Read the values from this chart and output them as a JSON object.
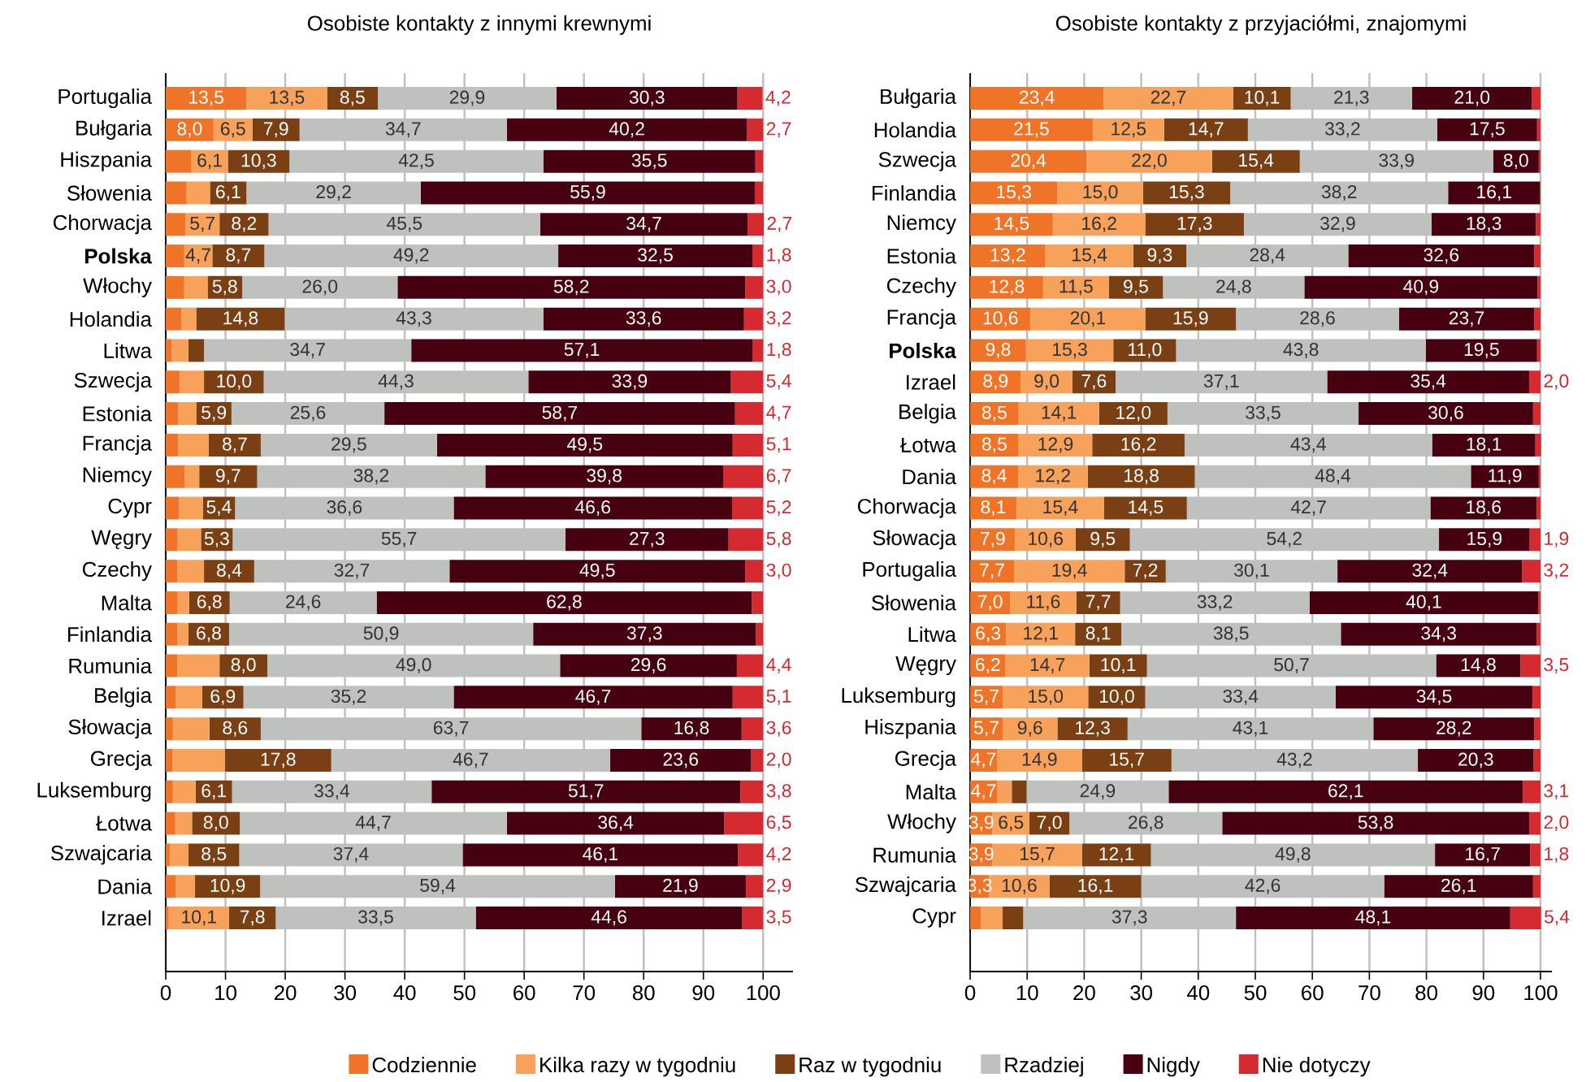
{
  "chart_data": [
    {
      "type": "bar",
      "orientation": "horizontal",
      "stacked": true,
      "title": "Osobiste kontakty z innymi krewnymi",
      "grid": "x",
      "legend": "bottom",
      "xlim": [
        0,
        105
      ],
      "xticks": [
        0,
        10,
        20,
        30,
        40,
        50,
        60,
        70,
        80,
        90,
        100
      ],
      "categories": [
        "Portugalia",
        "Bułgaria",
        "Hiszpania",
        "Słowenia",
        "Chorwacja",
        "**Polska**",
        "Włochy",
        "Holandia",
        "Litwa",
        "Szwecja",
        "Estonia",
        "Francja",
        "Niemcy",
        "Cypr",
        "Węgry",
        "Czechy",
        "Malta",
        "Finlandia",
        "Rumunia",
        "Belgia",
        "Słowacja",
        "Grecja",
        "Luksemburg",
        "Łotwa",
        "Szwajcaria",
        "Dania",
        "Izrael"
      ],
      "series": [
        {
          "name": "Codziennie",
          "color": "#f07427",
          "values": [
            13.5,
            8.0,
            4.3,
            3.5,
            3.3,
            3.1,
            3.1,
            2.6,
            1.0,
            2.3,
            2.1,
            2.1,
            3.2,
            2.2,
            2.0,
            1.9,
            2.0,
            1.9,
            1.9,
            1.7,
            1.2,
            1.1,
            1.2,
            1.6,
            0.7,
            1.7,
            0.5
          ],
          "value_labels": [
            "13,5",
            "8,0",
            null,
            null,
            null,
            null,
            null,
            null,
            null,
            null,
            null,
            null,
            null,
            null,
            null,
            null,
            null,
            null,
            null,
            null,
            null,
            null,
            null,
            null,
            null,
            null,
            null
          ]
        },
        {
          "name": "Kilka razy w tygodniu",
          "color": "#f7a15a",
          "values": [
            13.5,
            6.5,
            6.1,
            3.9,
            5.7,
            4.7,
            3.9,
            2.5,
            2.8,
            4.1,
            3.0,
            5.1,
            2.4,
            4.0,
            3.9,
            4.5,
            1.9,
            1.9,
            7.1,
            4.4,
            6.1,
            8.8,
            3.8,
            2.8,
            3.1,
            3.2,
            10.1
          ],
          "value_labels": [
            "13,5",
            "6,5",
            "6,1",
            null,
            "5,7",
            "4,7",
            null,
            null,
            null,
            null,
            null,
            null,
            null,
            null,
            null,
            null,
            null,
            null,
            null,
            null,
            null,
            null,
            null,
            null,
            null,
            null,
            "10,1"
          ]
        },
        {
          "name": "Raz w tygodniu",
          "color": "#7b3f14",
          "values": [
            8.5,
            7.9,
            10.3,
            6.1,
            8.2,
            8.7,
            5.8,
            14.8,
            2.6,
            10.0,
            5.9,
            8.7,
            9.7,
            5.4,
            5.3,
            8.4,
            6.8,
            6.8,
            8.0,
            6.9,
            8.6,
            17.8,
            6.1,
            8.0,
            8.5,
            10.9,
            7.8
          ],
          "value_labels": [
            "8,5",
            "7,9",
            "10,3",
            "6,1",
            "8,2",
            "8,7",
            "5,8",
            "14,8",
            null,
            "10,0",
            "5,9",
            "8,7",
            "9,7",
            "5,4",
            "5,3",
            "8,4",
            "6,8",
            "6,8",
            "8,0",
            "6,9",
            "8,6",
            "17,8",
            "6,1",
            "8,0",
            "8,5",
            "10,9",
            "7,8"
          ]
        },
        {
          "name": "Rzadziej",
          "color": "#bfc1bf",
          "values": [
            29.9,
            34.7,
            42.5,
            29.2,
            45.5,
            49.2,
            26.0,
            43.3,
            34.7,
            44.3,
            25.6,
            29.5,
            38.2,
            36.6,
            55.7,
            32.7,
            24.6,
            50.9,
            49.0,
            35.2,
            63.7,
            46.7,
            33.4,
            44.7,
            37.4,
            59.4,
            33.5
          ],
          "value_labels": [
            "29,9",
            "34,7",
            "42,5",
            "29,2",
            "45,5",
            "49,2",
            "26,0",
            "43,3",
            "34,7",
            "44,3",
            "25,6",
            "29,5",
            "38,2",
            "36,6",
            "55,7",
            "32,7",
            "24,6",
            "50,9",
            "49,0",
            "35,2",
            "63,7",
            "46,7",
            "33,4",
            "44,7",
            "37,4",
            "59,4",
            "33,5"
          ]
        },
        {
          "name": "Nigdy",
          "color": "#46000f",
          "values": [
            30.3,
            40.2,
            35.5,
            55.9,
            34.7,
            32.5,
            58.2,
            33.6,
            57.1,
            33.9,
            58.7,
            49.5,
            39.8,
            46.6,
            27.3,
            49.5,
            62.8,
            37.3,
            29.6,
            46.7,
            16.8,
            23.6,
            51.7,
            36.4,
            46.1,
            21.9,
            44.6
          ],
          "value_labels": [
            "30,3",
            "40,2",
            "35,5",
            "55,9",
            "34,7",
            "32,5",
            "58,2",
            "33,6",
            "57,1",
            "33,9",
            "58,7",
            "49,5",
            "39,8",
            "46,6",
            "27,3",
            "49,5",
            "62,8",
            "37,3",
            "29,6",
            "46,7",
            "16,8",
            "23,6",
            "51,7",
            "36,4",
            "46,1",
            "21,9",
            "44,6"
          ]
        },
        {
          "name": "Nie dotyczy",
          "color": "#d42a30",
          "values": [
            4.2,
            2.7,
            1.3,
            1.4,
            2.7,
            1.8,
            3.0,
            3.2,
            1.8,
            5.4,
            4.7,
            5.1,
            6.7,
            5.2,
            5.8,
            3.0,
            1.9,
            1.2,
            4.4,
            5.1,
            3.6,
            2.0,
            3.8,
            6.5,
            4.2,
            2.9,
            3.5
          ],
          "value_labels": [
            "4,2",
            "2,7",
            null,
            null,
            "2,7",
            "1,8",
            "3,0",
            "3,2",
            "1,8",
            "5,4",
            "4,7",
            "5,1",
            "6,7",
            "5,2",
            "5,8",
            "3,0",
            null,
            null,
            "4,4",
            "5,1",
            "3,6",
            "2,0",
            "3,8",
            "6,5",
            "4,2",
            "2,9",
            "3,5"
          ]
        }
      ]
    },
    {
      "type": "bar",
      "orientation": "horizontal",
      "stacked": true,
      "title": "Osobiste kontakty z przyjaciółmi, znajomymi",
      "grid": "x",
      "xlim": [
        0,
        102
      ],
      "xticks": [
        0,
        10,
        20,
        30,
        40,
        50,
        60,
        70,
        80,
        90,
        100
      ],
      "categories": [
        "Bułgaria",
        "Holandia",
        "Szwecja",
        "Finlandia",
        "Niemcy",
        "Estonia",
        "Czechy",
        "Francja",
        "**Polska**",
        "Izrael",
        "Belgia",
        "Łotwa",
        "Dania",
        "Chorwacja",
        "Słowacja",
        "Portugalia",
        "Słowenia",
        "Litwa",
        "Węgry",
        "Luksemburg",
        "Hiszpania",
        "Grecja",
        "Malta",
        "Włochy",
        "Rumunia",
        "Szwajcaria",
        "Cypr"
      ],
      "series": [
        {
          "color": "#f07427",
          "values": [
            23.4,
            21.5,
            20.4,
            15.3,
            14.5,
            13.2,
            12.8,
            10.6,
            9.8,
            8.9,
            8.5,
            8.5,
            8.4,
            8.1,
            7.9,
            7.7,
            7.0,
            6.3,
            6.2,
            5.7,
            5.7,
            4.7,
            4.7,
            3.9,
            3.9,
            3.3,
            1.9
          ],
          "value_labels": [
            "23,4",
            "21,5",
            "20,4",
            "15,3",
            "14,5",
            "13,2",
            "12,8",
            "10,6",
            "9,8",
            "8,9",
            "8,5",
            "8,5",
            "8,4",
            "8,1",
            "7,9",
            "7,7",
            "7,0",
            "6,3",
            "6,2",
            "5,7",
            "5,7",
            "4,7",
            "4,7",
            "3,9",
            "3,9",
            "3,3",
            null
          ]
        },
        {
          "color": "#f7a15a",
          "values": [
            22.7,
            12.5,
            22.0,
            15.0,
            16.2,
            15.4,
            11.5,
            20.1,
            15.3,
            9.0,
            14.1,
            12.9,
            12.2,
            15.4,
            10.6,
            19.4,
            11.6,
            12.1,
            14.7,
            15.0,
            9.6,
            14.9,
            2.6,
            6.5,
            15.7,
            10.6,
            3.8
          ],
          "value_labels": [
            "22,7",
            "12,5",
            "22,0",
            "15,0",
            "16,2",
            "15,4",
            "11,5",
            "20,1",
            "15,3",
            "9,0",
            "14,1",
            "12,9",
            "12,2",
            "15,4",
            "10,6",
            "19,4",
            "11,6",
            "12,1",
            "14,7",
            "15,0",
            "9,6",
            "14,9",
            null,
            "6,5",
            "15,7",
            "10,6",
            null
          ]
        },
        {
          "color": "#7b3f14",
          "values": [
            10.1,
            14.7,
            15.4,
            15.3,
            17.3,
            9.3,
            9.5,
            15.9,
            11.0,
            7.6,
            12.0,
            16.2,
            18.8,
            14.5,
            9.5,
            7.2,
            7.7,
            8.1,
            10.1,
            10.0,
            12.3,
            15.7,
            2.6,
            7.0,
            12.1,
            16.1,
            3.6
          ],
          "value_labels": [
            "10,1",
            "14,7",
            "15,4",
            "15,3",
            "17,3",
            "9,3",
            "9,5",
            "15,9",
            "11,0",
            "7,6",
            "12,0",
            "16,2",
            "18,8",
            "14,5",
            "9,5",
            "7,2",
            "7,7",
            "8,1",
            "10,1",
            "10,0",
            "12,3",
            "15,7",
            null,
            "7,0",
            "12,1",
            "16,1",
            null
          ]
        },
        {
          "color": "#bfc1bf",
          "values": [
            21.3,
            33.2,
            33.9,
            38.2,
            32.9,
            28.4,
            24.8,
            28.6,
            43.8,
            37.1,
            33.5,
            43.4,
            48.4,
            42.7,
            54.2,
            30.1,
            33.2,
            38.5,
            50.7,
            33.4,
            43.1,
            43.2,
            24.9,
            26.8,
            49.8,
            42.6,
            37.3
          ],
          "value_labels": [
            "21,3",
            "33,2",
            "33,9",
            "38,2",
            "32,9",
            "28,4",
            "24,8",
            "28,6",
            "43,8",
            "37,1",
            "33,5",
            "43,4",
            "48,4",
            "42,7",
            "54,2",
            "30,1",
            "33,2",
            "38,5",
            "50,7",
            "33,4",
            "43,1",
            "43,2",
            "24,9",
            "26,8",
            "49,8",
            "42,6",
            "37,3"
          ]
        },
        {
          "color": "#46000f",
          "values": [
            21.0,
            17.5,
            8.0,
            16.1,
            18.3,
            32.6,
            40.9,
            23.7,
            19.5,
            35.4,
            30.6,
            18.1,
            11.9,
            18.6,
            15.9,
            32.4,
            40.1,
            34.3,
            14.8,
            34.5,
            28.2,
            20.3,
            62.1,
            53.8,
            16.7,
            26.1,
            48.1
          ],
          "value_labels": [
            "21,0",
            "17,5",
            "8,0",
            "16,1",
            "18,3",
            "32,6",
            "40,9",
            "23,7",
            "19,5",
            "35,4",
            "30,6",
            "18,1",
            "11,9",
            "18,6",
            "15,9",
            "32,4",
            "40,1",
            "34,3",
            "14,8",
            "34,5",
            "28,2",
            "20,3",
            "62,1",
            "53,8",
            "16,7",
            "26,1",
            "48,1"
          ]
        },
        {
          "color": "#d42a30",
          "values": [
            1.5,
            0.6,
            0.3,
            0.1,
            0.8,
            1.1,
            0.5,
            1.1,
            0.6,
            2.0,
            1.3,
            1.0,
            0.3,
            0.7,
            1.9,
            3.2,
            0.4,
            0.7,
            3.5,
            1.4,
            1.1,
            1.2,
            3.1,
            2.0,
            1.8,
            1.3,
            5.4
          ],
          "value_labels": [
            null,
            null,
            null,
            null,
            null,
            null,
            null,
            null,
            null,
            "2,0",
            null,
            null,
            null,
            null,
            "1,9",
            "3,2",
            null,
            null,
            "3,5",
            null,
            null,
            null,
            "3,1",
            "2,0",
            "1,8",
            null,
            "5,4"
          ]
        }
      ]
    }
  ]
}
